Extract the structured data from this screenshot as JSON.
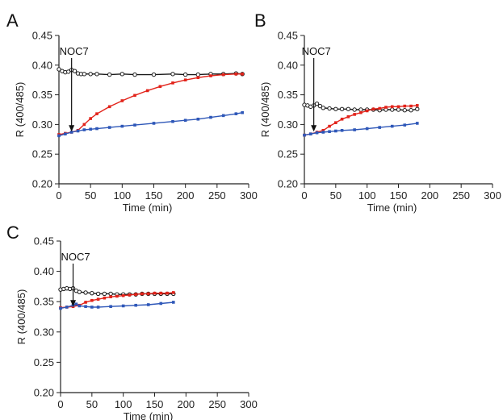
{
  "chart_data": [
    {
      "panel": "A",
      "type": "line",
      "xlabel": "Time (min)",
      "ylabel": "R (400/485)",
      "xlim": [
        0,
        300
      ],
      "ylim": [
        0.2,
        0.45
      ],
      "xticks": [
        "0",
        "50",
        "100",
        "150",
        "200",
        "250",
        "300"
      ],
      "yticks": [
        "0.20",
        "0.25",
        "0.30",
        "0.35",
        "0.40",
        "0.45"
      ],
      "annotation": {
        "text": "NOC7",
        "x": 20,
        "y": 0.288
      },
      "series": [
        {
          "color": "#1a1a1a",
          "marker": "open-circle",
          "x": [
            0,
            5,
            10,
            15,
            20,
            25,
            30,
            35,
            40,
            50,
            60,
            80,
            100,
            120,
            150,
            180,
            200,
            220,
            240,
            260,
            280,
            290
          ],
          "y": [
            0.393,
            0.39,
            0.388,
            0.389,
            0.392,
            0.39,
            0.386,
            0.385,
            0.385,
            0.385,
            0.385,
            0.384,
            0.385,
            0.384,
            0.384,
            0.385,
            0.384,
            0.384,
            0.385,
            0.385,
            0.386,
            0.385
          ]
        },
        {
          "color": "#e2231a",
          "marker": "square",
          "x": [
            0,
            10,
            20,
            30,
            40,
            50,
            60,
            80,
            100,
            120,
            140,
            160,
            180,
            200,
            220,
            240,
            260,
            280,
            290
          ],
          "y": [
            0.283,
            0.285,
            0.287,
            0.29,
            0.3,
            0.31,
            0.318,
            0.33,
            0.34,
            0.349,
            0.357,
            0.364,
            0.37,
            0.375,
            0.379,
            0.382,
            0.384,
            0.385,
            0.385
          ]
        },
        {
          "color": "#2e57b8",
          "marker": "square",
          "x": [
            0,
            10,
            20,
            30,
            40,
            50,
            60,
            80,
            100,
            120,
            150,
            180,
            200,
            220,
            240,
            260,
            280,
            290
          ],
          "y": [
            0.281,
            0.284,
            0.287,
            0.289,
            0.291,
            0.292,
            0.293,
            0.295,
            0.297,
            0.299,
            0.302,
            0.305,
            0.307,
            0.309,
            0.312,
            0.315,
            0.318,
            0.32
          ]
        }
      ]
    },
    {
      "panel": "B",
      "type": "line",
      "xlabel": "Time (min)",
      "ylabel": "R (400/485)",
      "xlim": [
        0,
        300
      ],
      "ylim": [
        0.2,
        0.45
      ],
      "xticks": [
        "0",
        "50",
        "100",
        "150",
        "200",
        "250",
        "300"
      ],
      "yticks": [
        "0.20",
        "0.25",
        "0.30",
        "0.35",
        "0.40",
        "0.45"
      ],
      "annotation": {
        "text": "NOC7",
        "x": 15,
        "y": 0.288
      },
      "series": [
        {
          "color": "#1a1a1a",
          "marker": "open-circle",
          "x": [
            0,
            5,
            10,
            15,
            20,
            25,
            30,
            40,
            50,
            60,
            70,
            80,
            90,
            100,
            110,
            120,
            130,
            140,
            150,
            160,
            170,
            180
          ],
          "y": [
            0.333,
            0.332,
            0.33,
            0.332,
            0.335,
            0.331,
            0.328,
            0.327,
            0.326,
            0.326,
            0.326,
            0.325,
            0.325,
            0.325,
            0.325,
            0.324,
            0.325,
            0.325,
            0.325,
            0.324,
            0.324,
            0.326
          ]
        },
        {
          "color": "#e2231a",
          "marker": "square",
          "x": [
            0,
            10,
            20,
            30,
            40,
            50,
            60,
            70,
            80,
            90,
            100,
            110,
            120,
            130,
            140,
            150,
            160,
            170,
            180
          ],
          "y": [
            0.282,
            0.284,
            0.287,
            0.29,
            0.297,
            0.303,
            0.309,
            0.313,
            0.317,
            0.32,
            0.323,
            0.326,
            0.327,
            0.329,
            0.33,
            0.33,
            0.331,
            0.331,
            0.332
          ]
        },
        {
          "color": "#2e57b8",
          "marker": "square",
          "x": [
            0,
            10,
            20,
            30,
            40,
            50,
            60,
            80,
            100,
            120,
            140,
            160,
            180
          ],
          "y": [
            0.282,
            0.284,
            0.286,
            0.287,
            0.288,
            0.289,
            0.29,
            0.291,
            0.293,
            0.295,
            0.297,
            0.299,
            0.302
          ]
        }
      ]
    },
    {
      "panel": "C",
      "type": "line",
      "xlabel": "Time (min)",
      "ylabel": "R (400/485)",
      "xlim": [
        0,
        300
      ],
      "ylim": [
        0.2,
        0.45
      ],
      "xticks": [
        "0",
        "50",
        "100",
        "150",
        "200",
        "250",
        "300"
      ],
      "yticks": [
        "0.20",
        "0.25",
        "0.30",
        "0.35",
        "0.40",
        "0.45"
      ],
      "annotation": {
        "text": "NOC7",
        "x": 20,
        "y": 0.342
      },
      "series": [
        {
          "color": "#1a1a1a",
          "marker": "open-circle",
          "x": [
            0,
            5,
            10,
            15,
            20,
            25,
            30,
            40,
            50,
            60,
            70,
            80,
            90,
            100,
            110,
            120,
            130,
            140,
            150,
            160,
            170,
            180
          ],
          "y": [
            0.37,
            0.371,
            0.372,
            0.371,
            0.372,
            0.368,
            0.366,
            0.365,
            0.364,
            0.363,
            0.363,
            0.363,
            0.362,
            0.362,
            0.362,
            0.362,
            0.363,
            0.363,
            0.363,
            0.363,
            0.363,
            0.363
          ]
        },
        {
          "color": "#e2231a",
          "marker": "square",
          "x": [
            0,
            10,
            20,
            30,
            40,
            50,
            60,
            70,
            80,
            90,
            100,
            110,
            120,
            130,
            140,
            150,
            160,
            170,
            180
          ],
          "y": [
            0.34,
            0.341,
            0.342,
            0.344,
            0.349,
            0.352,
            0.354,
            0.356,
            0.358,
            0.359,
            0.36,
            0.361,
            0.362,
            0.363,
            0.363,
            0.364,
            0.364,
            0.364,
            0.365
          ]
        },
        {
          "color": "#2e57b8",
          "marker": "square",
          "x": [
            0,
            10,
            20,
            25,
            30,
            40,
            50,
            60,
            80,
            100,
            120,
            140,
            160,
            180
          ],
          "y": [
            0.339,
            0.341,
            0.344,
            0.346,
            0.343,
            0.342,
            0.341,
            0.341,
            0.342,
            0.343,
            0.344,
            0.345,
            0.347,
            0.349
          ]
        }
      ]
    }
  ]
}
